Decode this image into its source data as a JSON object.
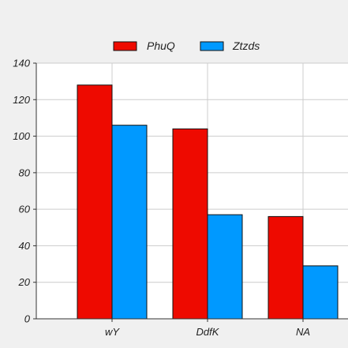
{
  "chart_data": {
    "type": "bar",
    "title": "",
    "xlabel": "",
    "ylabel": "",
    "categories": [
      "wY",
      "DdfK",
      "NA"
    ],
    "series": [
      {
        "name": "PhuQ",
        "values": [
          128,
          104,
          56
        ],
        "color": "#ee0a00"
      },
      {
        "name": "Ztzds",
        "values": [
          106,
          57,
          29
        ],
        "color": "#0099ff"
      }
    ],
    "ylim": [
      0,
      140
    ],
    "yticks": [
      0,
      20,
      40,
      60,
      80,
      100,
      120,
      140
    ],
    "grid": true,
    "legend_position": "top-center"
  }
}
